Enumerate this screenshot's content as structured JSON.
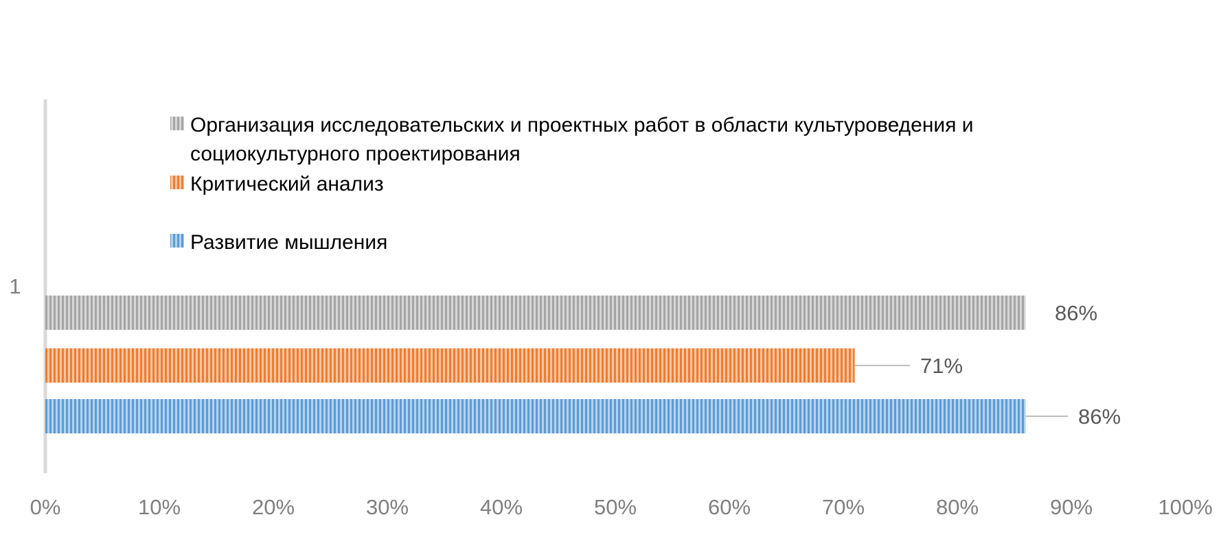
{
  "chart_data": {
    "type": "bar",
    "orientation": "horizontal",
    "categories": [
      "1"
    ],
    "series": [
      {
        "name": "Развитие мышления",
        "values": [
          86
        ],
        "label": "86%",
        "color": "#5b9bd5"
      },
      {
        "name": "Критический анализ",
        "values": [
          71
        ],
        "label": "71%",
        "color": "#ed7d31"
      },
      {
        "name": "Организация исследовательских и проектных работ в области культуроведения и социокультурного проектирования",
        "legend_lines": [
          "Организация исследовательских и проектных работ в области культуроведения и",
          "социокультурного проектирования"
        ],
        "values": [
          86
        ],
        "label": "86%",
        "color": "#a5a5a5"
      }
    ],
    "xlim": [
      0,
      100
    ],
    "x_ticks": [
      {
        "value": 0,
        "label": "0%"
      },
      {
        "value": 10,
        "label": "10%"
      },
      {
        "value": 20,
        "label": "20%"
      },
      {
        "value": 30,
        "label": "30%"
      },
      {
        "value": 40,
        "label": "40%"
      },
      {
        "value": 50,
        "label": "50%"
      },
      {
        "value": 60,
        "label": "60%"
      },
      {
        "value": 70,
        "label": "70%"
      },
      {
        "value": 80,
        "label": "80%"
      },
      {
        "value": 90,
        "label": "90%"
      },
      {
        "value": 100,
        "label": "100%"
      }
    ],
    "legend_order": [
      2,
      1,
      0
    ],
    "legend_position": "top",
    "grid": false,
    "bar_pattern": "vertical-stripes",
    "title": "",
    "xlabel": "",
    "ylabel": ""
  }
}
